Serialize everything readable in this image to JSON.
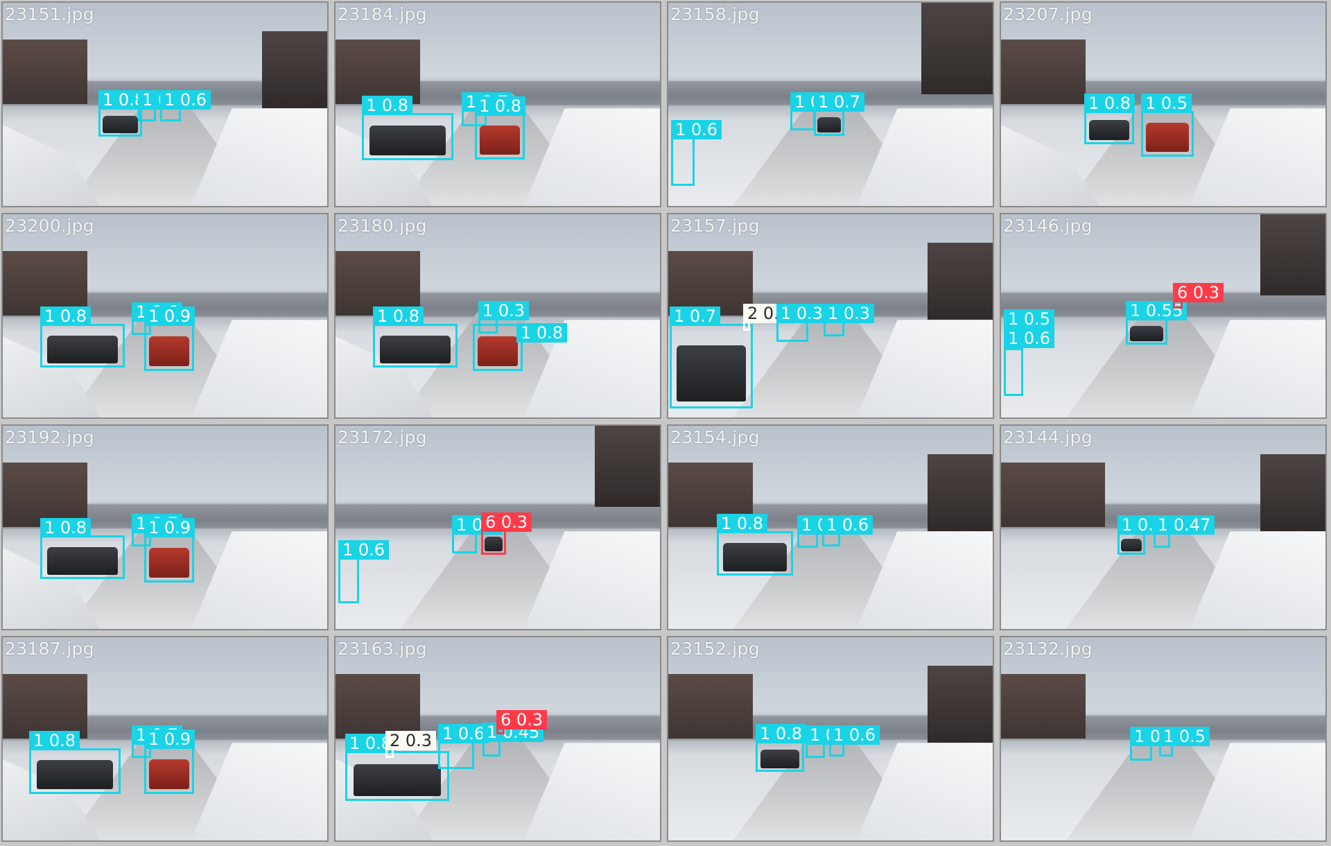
{
  "tiles": [
    {
      "filename": "23151.jpg",
      "boxes": [
        {
          "cls": "1",
          "label": "1 0.8"
        },
        {
          "cls": "1",
          "label": "1 0.7"
        },
        {
          "cls": "1",
          "label": "1 0.6"
        }
      ]
    },
    {
      "filename": "23184.jpg",
      "boxes": [
        {
          "cls": "1",
          "label": "1 0.8"
        },
        {
          "cls": "1",
          "label": "1 0.7"
        },
        {
          "cls": "1",
          "label": "1 0.8"
        }
      ]
    },
    {
      "filename": "23158.jpg",
      "boxes": [
        {
          "cls": "1",
          "label": "1 0.6"
        },
        {
          "cls": "1",
          "label": "1 0.6"
        },
        {
          "cls": "1",
          "label": "1 0.7"
        }
      ]
    },
    {
      "filename": "23207.jpg",
      "boxes": [
        {
          "cls": "1",
          "label": "1 0.8"
        },
        {
          "cls": "1",
          "label": "1 0.5"
        }
      ]
    },
    {
      "filename": "23200.jpg",
      "boxes": [
        {
          "cls": "1",
          "label": "1 0.8"
        },
        {
          "cls": "1",
          "label": "1 0.6"
        },
        {
          "cls": "1",
          "label": "1 0.9"
        }
      ]
    },
    {
      "filename": "23180.jpg",
      "boxes": [
        {
          "cls": "1",
          "label": "1 0.8"
        },
        {
          "cls": "1",
          "label": "1 0.3"
        },
        {
          "cls": "1",
          "label": "1 0.8"
        }
      ]
    },
    {
      "filename": "23157.jpg",
      "boxes": [
        {
          "cls": "1",
          "label": "1 0.7"
        },
        {
          "cls": "2",
          "label": "2 0.3"
        },
        {
          "cls": "1",
          "label": "1 0.3"
        },
        {
          "cls": "1",
          "label": "1 0.3"
        }
      ]
    },
    {
      "filename": "23146.jpg",
      "boxes": [
        {
          "cls": "1",
          "label": "1 0.5"
        },
        {
          "cls": "1",
          "label": "1 0.6"
        },
        {
          "cls": "1",
          "label": "1 0.55"
        },
        {
          "cls": "6",
          "label": "6 0.3"
        }
      ]
    },
    {
      "filename": "23192.jpg",
      "boxes": [
        {
          "cls": "1",
          "label": "1 0.8"
        },
        {
          "cls": "1",
          "label": "1 0.7"
        },
        {
          "cls": "1",
          "label": "1 0.9"
        }
      ]
    },
    {
      "filename": "23172.jpg",
      "boxes": [
        {
          "cls": "1",
          "label": "1 0.6"
        },
        {
          "cls": "1",
          "label": "1 0.6"
        },
        {
          "cls": "6",
          "label": "6 0.3"
        }
      ]
    },
    {
      "filename": "23154.jpg",
      "boxes": [
        {
          "cls": "1",
          "label": "1 0.8"
        },
        {
          "cls": "1",
          "label": "1 0.6"
        },
        {
          "cls": "1",
          "label": "1 0.6"
        }
      ]
    },
    {
      "filename": "23144.jpg",
      "boxes": [
        {
          "cls": "1",
          "label": "1 0.4"
        },
        {
          "cls": "1",
          "label": "1 0.47"
        }
      ]
    },
    {
      "filename": "23187.jpg",
      "boxes": [
        {
          "cls": "1",
          "label": "1 0.8"
        },
        {
          "cls": "1",
          "label": "1 0.7"
        },
        {
          "cls": "1",
          "label": "1 0.9"
        }
      ]
    },
    {
      "filename": "23163.jpg",
      "boxes": [
        {
          "cls": "1",
          "label": "1 0.8"
        },
        {
          "cls": "2",
          "label": "2 0.3"
        },
        {
          "cls": "1",
          "label": "1 0.6"
        },
        {
          "cls": "1",
          "label": "1 0.45"
        },
        {
          "cls": "6",
          "label": "6 0.3"
        }
      ]
    },
    {
      "filename": "23152.jpg",
      "boxes": [
        {
          "cls": "1",
          "label": "1 0.8"
        },
        {
          "cls": "1",
          "label": "1 0.5"
        },
        {
          "cls": "1",
          "label": "1 0.6"
        }
      ]
    },
    {
      "filename": "23132.jpg",
      "boxes": [
        {
          "cls": "1",
          "label": "1 0.4"
        },
        {
          "cls": "1",
          "label": "1 0.5"
        }
      ]
    }
  ]
}
